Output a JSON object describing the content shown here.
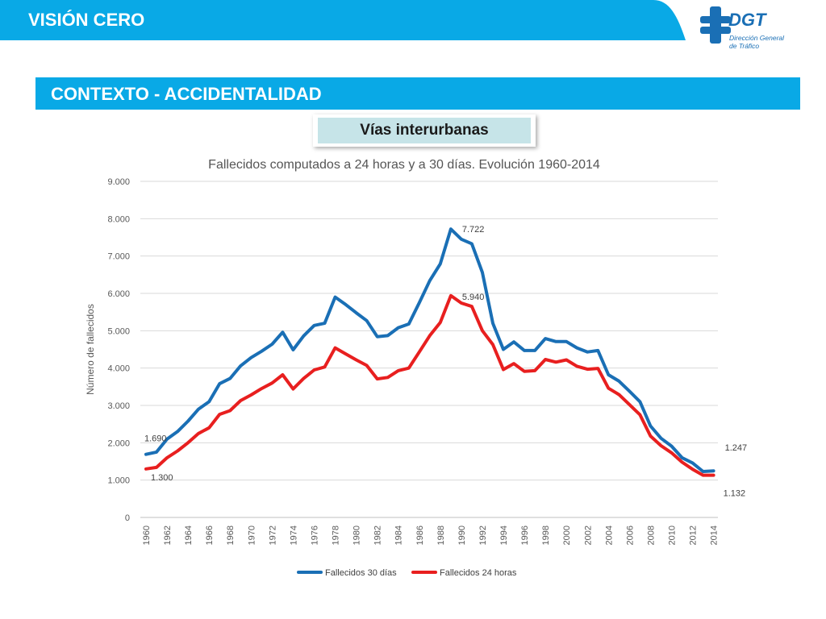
{
  "header": {
    "title": "VISIÓN CERO",
    "color": "#09a9e6"
  },
  "logo": {
    "name": "DGT",
    "subtitle_line1": "Dirección General",
    "subtitle_line2": "de Tráfico",
    "color": "#1a6fb5",
    "icon": "dgt-cross-icon"
  },
  "section": {
    "title": "CONTEXTO - ACCIDENTALIDAD",
    "color": "#09a9e6"
  },
  "subtitle": {
    "label": "Vías interurbanas"
  },
  "chart_data": {
    "type": "line",
    "title": "Fallecidos computados a 24 horas y a 30 días. Evolución 1960-2014",
    "xlabel": "",
    "ylabel": "Número de fallecidos",
    "ylim": [
      0,
      9000
    ],
    "y_ticks": [
      "0",
      "1.000",
      "2.000",
      "3.000",
      "4.000",
      "5.000",
      "6.000",
      "7.000",
      "8.000",
      "9.000"
    ],
    "x_tick_labels": [
      "1960",
      "1962",
      "1964",
      "1966",
      "1968",
      "1970",
      "1972",
      "1974",
      "1976",
      "1978",
      "1980",
      "1982",
      "1984",
      "1986",
      "1988",
      "1990",
      "1992",
      "1994",
      "1996",
      "1998",
      "2000",
      "2002",
      "2004",
      "2006",
      "2008",
      "2010",
      "2012",
      "2014"
    ],
    "x": [
      1960,
      1961,
      1962,
      1963,
      1964,
      1965,
      1966,
      1967,
      1968,
      1969,
      1970,
      1971,
      1972,
      1973,
      1974,
      1975,
      1976,
      1977,
      1978,
      1979,
      1980,
      1981,
      1982,
      1983,
      1984,
      1985,
      1986,
      1987,
      1988,
      1989,
      1990,
      1991,
      1992,
      1993,
      1994,
      1995,
      1996,
      1997,
      1998,
      1999,
      2000,
      2001,
      2002,
      2003,
      2004,
      2005,
      2006,
      2007,
      2008,
      2009,
      2010,
      2011,
      2012,
      2013,
      2014
    ],
    "grid": true,
    "legend_position": "bottom",
    "series": [
      {
        "name": "Fallecidos 30 días",
        "color": "#1a6fb5",
        "values": [
          1690,
          1750,
          2100,
          2300,
          2580,
          2900,
          3100,
          3580,
          3720,
          4060,
          4280,
          4450,
          4640,
          4960,
          4490,
          4860,
          5140,
          5200,
          5900,
          5700,
          5480,
          5270,
          4840,
          4870,
          5080,
          5180,
          5750,
          6340,
          6790,
          7722,
          7450,
          7330,
          6560,
          5200,
          4500,
          4700,
          4470,
          4470,
          4790,
          4710,
          4710,
          4540,
          4430,
          4470,
          3820,
          3650,
          3380,
          3100,
          2450,
          2120,
          1910,
          1600,
          1460,
          1230,
          1247
        ]
      },
      {
        "name": "Fallecidos 24 horas",
        "color": "#e81f1f",
        "values": [
          1300,
          1340,
          1600,
          1780,
          2000,
          2250,
          2400,
          2760,
          2860,
          3130,
          3280,
          3450,
          3600,
          3820,
          3440,
          3720,
          3950,
          4030,
          4540,
          4380,
          4220,
          4070,
          3710,
          3750,
          3930,
          4000,
          4430,
          4870,
          5220,
          5940,
          5740,
          5650,
          5000,
          4630,
          3960,
          4120,
          3910,
          3930,
          4230,
          4160,
          4220,
          4050,
          3970,
          3990,
          3460,
          3290,
          3020,
          2750,
          2180,
          1920,
          1730,
          1480,
          1290,
          1130,
          1132
        ]
      }
    ],
    "data_labels": [
      {
        "series": 0,
        "x": 1960,
        "text": "1.690"
      },
      {
        "series": 1,
        "x": 1960,
        "text": "1.300"
      },
      {
        "series": 0,
        "x": 1989,
        "text": "7.722"
      },
      {
        "series": 1,
        "x": 1989,
        "text": "5.940"
      },
      {
        "series": 0,
        "x": 2014,
        "text": "1.247"
      },
      {
        "series": 1,
        "x": 2014,
        "text": "1.132"
      }
    ]
  }
}
